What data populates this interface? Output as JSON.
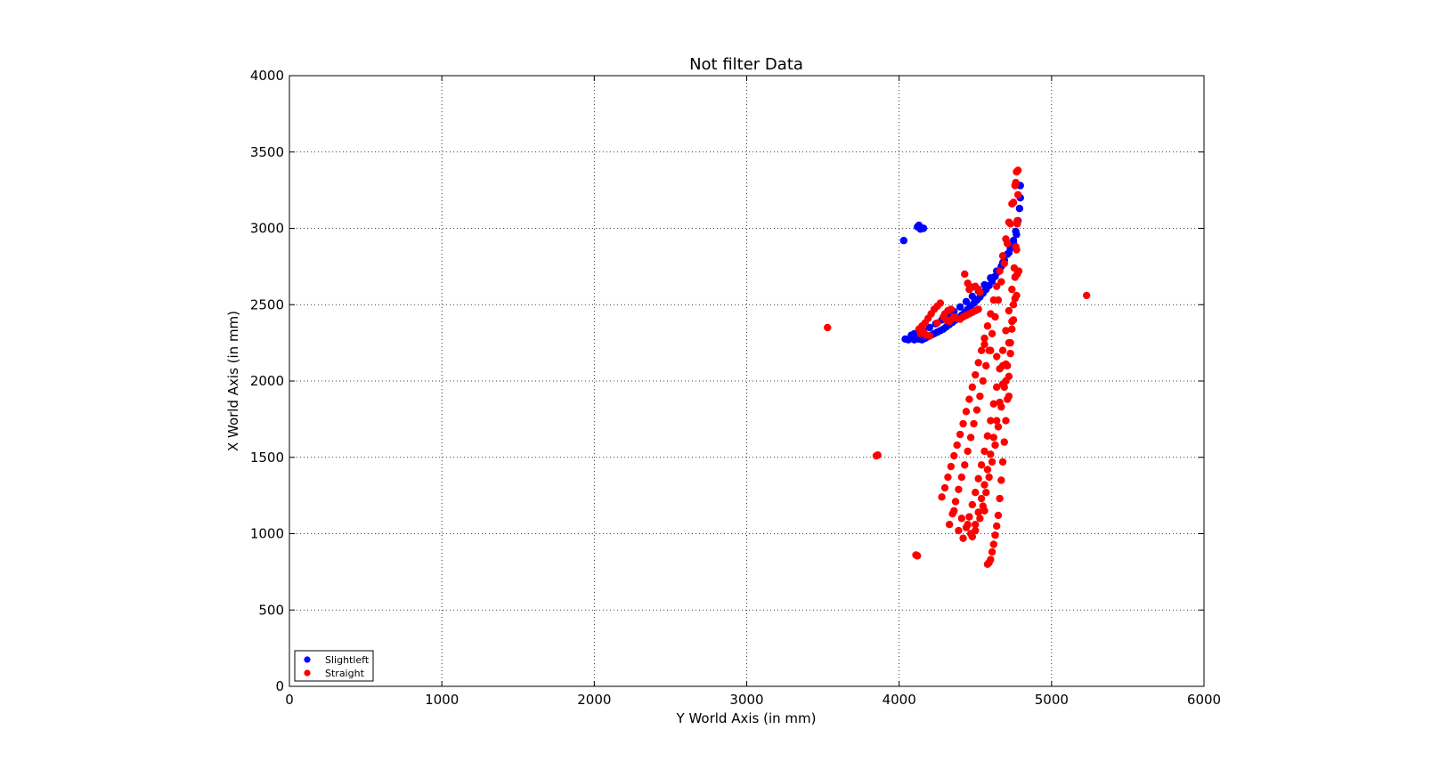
{
  "chart_data": {
    "type": "scatter",
    "title": "Not filter Data",
    "xlabel": "Y World Axis (in mm)",
    "ylabel": "X World Axis (in mm)",
    "xlim": [
      0,
      6000
    ],
    "ylim": [
      0,
      4000
    ],
    "xticks": [
      0,
      1000,
      2000,
      3000,
      4000,
      5000,
      6000
    ],
    "yticks": [
      0,
      500,
      1000,
      1500,
      2000,
      2500,
      3000,
      3500,
      4000
    ],
    "grid": true,
    "legend_position": "lower-left",
    "series": [
      {
        "name": "Slightleft",
        "color": "#0000ff",
        "points": [
          [
            4030,
            2920
          ],
          [
            4120,
            3010
          ],
          [
            4130,
            3020
          ],
          [
            4160,
            3000
          ],
          [
            4140,
            2995
          ],
          [
            4040,
            2275
          ],
          [
            4060,
            2270
          ],
          [
            4080,
            2280
          ],
          [
            4100,
            2270
          ],
          [
            4110,
            2290
          ],
          [
            4130,
            2275
          ],
          [
            4150,
            2270
          ],
          [
            4170,
            2280
          ],
          [
            4190,
            2290
          ],
          [
            4210,
            2300
          ],
          [
            4230,
            2310
          ],
          [
            4250,
            2320
          ],
          [
            4270,
            2330
          ],
          [
            4290,
            2340
          ],
          [
            4310,
            2355
          ],
          [
            4330,
            2370
          ],
          [
            4350,
            2385
          ],
          [
            4370,
            2400
          ],
          [
            4390,
            2415
          ],
          [
            4410,
            2430
          ],
          [
            4430,
            2450
          ],
          [
            4450,
            2470
          ],
          [
            4470,
            2490
          ],
          [
            4490,
            2510
          ],
          [
            4510,
            2530
          ],
          [
            4530,
            2550
          ],
          [
            4550,
            2575
          ],
          [
            4570,
            2600
          ],
          [
            4590,
            2625
          ],
          [
            4610,
            2655
          ],
          [
            4630,
            2685
          ],
          [
            4650,
            2715
          ],
          [
            4670,
            2750
          ],
          [
            4690,
            2790
          ],
          [
            4710,
            2830
          ],
          [
            4730,
            2870
          ],
          [
            4750,
            2920
          ],
          [
            4765,
            2980
          ],
          [
            4780,
            3050
          ],
          [
            4790,
            3130
          ],
          [
            4795,
            3200
          ],
          [
            4795,
            3280
          ],
          [
            4080,
            2300
          ],
          [
            4100,
            2310
          ],
          [
            4120,
            2300
          ],
          [
            4160,
            2330
          ],
          [
            4200,
            2350
          ],
          [
            4240,
            2375
          ],
          [
            4280,
            2400
          ],
          [
            4320,
            2425
          ],
          [
            4360,
            2455
          ],
          [
            4400,
            2485
          ],
          [
            4440,
            2520
          ],
          [
            4480,
            2555
          ],
          [
            4520,
            2590
          ],
          [
            4560,
            2630
          ],
          [
            4600,
            2675
          ],
          [
            4640,
            2720
          ],
          [
            4680,
            2775
          ],
          [
            4720,
            2840
          ],
          [
            4750,
            2900
          ],
          [
            4770,
            2960
          ]
        ]
      },
      {
        "name": "Straight",
        "color": "#ff0000",
        "points": [
          [
            3530,
            2350
          ],
          [
            5230,
            2560
          ],
          [
            3850,
            1510
          ],
          [
            3860,
            1515
          ],
          [
            4110,
            860
          ],
          [
            4120,
            855
          ],
          [
            4430,
            2700
          ],
          [
            4450,
            2640
          ],
          [
            4460,
            2600
          ],
          [
            4480,
            2615
          ],
          [
            4500,
            2620
          ],
          [
            4520,
            2600
          ],
          [
            4530,
            2580
          ],
          [
            4130,
            2340
          ],
          [
            4150,
            2360
          ],
          [
            4170,
            2380
          ],
          [
            4190,
            2410
          ],
          [
            4210,
            2440
          ],
          [
            4230,
            2470
          ],
          [
            4250,
            2490
          ],
          [
            4270,
            2510
          ],
          [
            4140,
            2310
          ],
          [
            4160,
            2320
          ],
          [
            4180,
            2300
          ],
          [
            4200,
            2295
          ],
          [
            4300,
            2440
          ],
          [
            4320,
            2460
          ],
          [
            4340,
            2470
          ],
          [
            4360,
            2420
          ],
          [
            4380,
            2410
          ],
          [
            4400,
            2405
          ],
          [
            4420,
            2420
          ],
          [
            4440,
            2430
          ],
          [
            4460,
            2440
          ],
          [
            4480,
            2450
          ],
          [
            4500,
            2460
          ],
          [
            4520,
            2470
          ],
          [
            4580,
            800
          ],
          [
            4590,
            810
          ],
          [
            4600,
            830
          ],
          [
            4610,
            880
          ],
          [
            4620,
            930
          ],
          [
            4630,
            990
          ],
          [
            4640,
            1050
          ],
          [
            4650,
            1120
          ],
          [
            4660,
            1230
          ],
          [
            4670,
            1350
          ],
          [
            4680,
            1470
          ],
          [
            4690,
            1600
          ],
          [
            4700,
            1740
          ],
          [
            4710,
            1880
          ],
          [
            4720,
            2030
          ],
          [
            4730,
            2180
          ],
          [
            4740,
            2340
          ],
          [
            4750,
            2500
          ],
          [
            4760,
            2680
          ],
          [
            4770,
            2860
          ],
          [
            4775,
            3050
          ],
          [
            4780,
            3220
          ],
          [
            4780,
            3380
          ],
          [
            4280,
            1240
          ],
          [
            4300,
            1300
          ],
          [
            4320,
            1370
          ],
          [
            4340,
            1440
          ],
          [
            4360,
            1510
          ],
          [
            4380,
            1580
          ],
          [
            4400,
            1650
          ],
          [
            4420,
            1720
          ],
          [
            4440,
            1800
          ],
          [
            4460,
            1880
          ],
          [
            4480,
            1960
          ],
          [
            4500,
            2040
          ],
          [
            4520,
            2120
          ],
          [
            4540,
            2200
          ],
          [
            4560,
            2280
          ],
          [
            4580,
            2360
          ],
          [
            4600,
            2440
          ],
          [
            4620,
            2530
          ],
          [
            4640,
            2620
          ],
          [
            4660,
            2720
          ],
          [
            4680,
            2820
          ],
          [
            4700,
            2930
          ],
          [
            4720,
            3040
          ],
          [
            4740,
            3160
          ],
          [
            4760,
            3280
          ],
          [
            4770,
            3370
          ],
          [
            4330,
            1060
          ],
          [
            4350,
            1130
          ],
          [
            4370,
            1210
          ],
          [
            4390,
            1290
          ],
          [
            4410,
            1370
          ],
          [
            4430,
            1450
          ],
          [
            4450,
            1540
          ],
          [
            4470,
            1630
          ],
          [
            4490,
            1720
          ],
          [
            4510,
            1810
          ],
          [
            4530,
            1900
          ],
          [
            4550,
            2000
          ],
          [
            4570,
            2100
          ],
          [
            4590,
            2200
          ],
          [
            4610,
            2310
          ],
          [
            4630,
            2420
          ],
          [
            4650,
            2530
          ],
          [
            4670,
            2650
          ],
          [
            4690,
            2770
          ],
          [
            4710,
            2900
          ],
          [
            4730,
            3030
          ],
          [
            4750,
            3170
          ],
          [
            4765,
            3300
          ],
          [
            4420,
            970
          ],
          [
            4440,
            1040
          ],
          [
            4460,
            1110
          ],
          [
            4480,
            1190
          ],
          [
            4500,
            1270
          ],
          [
            4520,
            1360
          ],
          [
            4540,
            1450
          ],
          [
            4560,
            1540
          ],
          [
            4580,
            1640
          ],
          [
            4600,
            1740
          ],
          [
            4620,
            1850
          ],
          [
            4640,
            1960
          ],
          [
            4660,
            2080
          ],
          [
            4680,
            2200
          ],
          [
            4700,
            2330
          ],
          [
            4720,
            2460
          ],
          [
            4740,
            2600
          ],
          [
            4755,
            2740
          ],
          [
            4765,
            2880
          ],
          [
            4775,
            3030
          ],
          [
            4480,
            980
          ],
          [
            4500,
            1060
          ],
          [
            4520,
            1140
          ],
          [
            4540,
            1230
          ],
          [
            4560,
            1320
          ],
          [
            4580,
            1420
          ],
          [
            4600,
            1520
          ],
          [
            4620,
            1630
          ],
          [
            4640,
            1740
          ],
          [
            4660,
            1860
          ],
          [
            4680,
            1980
          ],
          [
            4700,
            2110
          ],
          [
            4720,
            2250
          ],
          [
            4740,
            2390
          ],
          [
            4760,
            2540
          ],
          [
            4775,
            2700
          ],
          [
            4530,
            1100
          ],
          [
            4550,
            1180
          ],
          [
            4570,
            1270
          ],
          [
            4590,
            1370
          ],
          [
            4610,
            1470
          ],
          [
            4630,
            1580
          ],
          [
            4650,
            1700
          ],
          [
            4670,
            1830
          ],
          [
            4690,
            1960
          ],
          [
            4710,
            2100
          ],
          [
            4730,
            2250
          ],
          [
            4750,
            2400
          ],
          [
            4770,
            2560
          ],
          [
            4785,
            2720
          ],
          [
            4360,
            1150
          ],
          [
            4390,
            1020
          ],
          [
            4410,
            1100
          ],
          [
            4450,
            1060
          ],
          [
            4470,
            1000
          ],
          [
            4500,
            1020
          ],
          [
            4560,
            1150
          ],
          [
            4250,
            2380
          ],
          [
            4290,
            2420
          ],
          [
            4310,
            2400
          ],
          [
            4330,
            2390
          ],
          [
            4350,
            2410
          ],
          [
            4560,
            2240
          ],
          [
            4600,
            2200
          ],
          [
            4640,
            2160
          ],
          [
            4680,
            2100
          ],
          [
            4700,
            2000
          ],
          [
            4720,
            1900
          ]
        ]
      }
    ]
  }
}
